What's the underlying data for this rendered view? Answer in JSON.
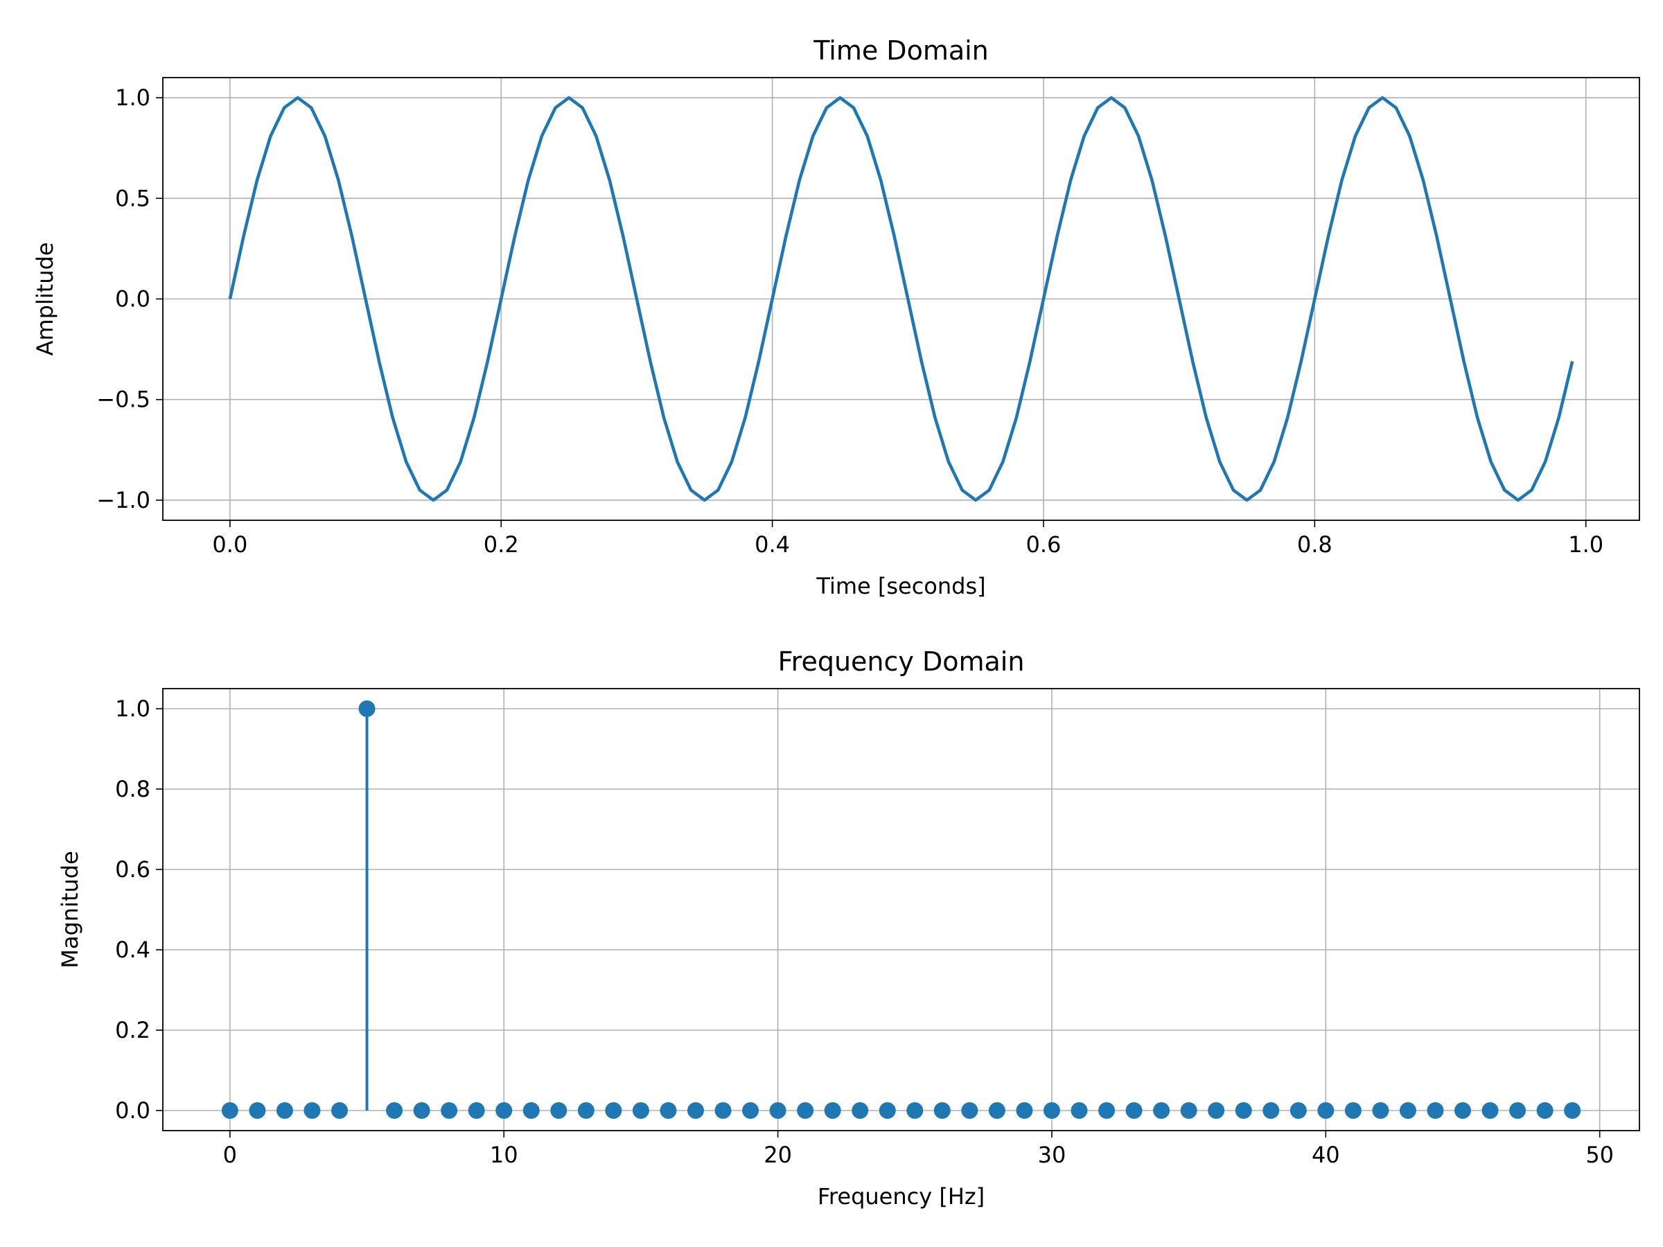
{
  "chart_data": [
    {
      "type": "line",
      "title": "Time Domain",
      "xlabel": "Time [seconds]",
      "ylabel": "Amplitude",
      "x": [
        0,
        0.01,
        0.02,
        0.03,
        0.04,
        0.05,
        0.06,
        0.07,
        0.08,
        0.09,
        0.1,
        0.11,
        0.12,
        0.13,
        0.14,
        0.15,
        0.16,
        0.17,
        0.18,
        0.19,
        0.2,
        0.21,
        0.22,
        0.23,
        0.24,
        0.25,
        0.26,
        0.27,
        0.28,
        0.29,
        0.3,
        0.31,
        0.32,
        0.33,
        0.34,
        0.35,
        0.36,
        0.37,
        0.38,
        0.39,
        0.4,
        0.41,
        0.42,
        0.43,
        0.44,
        0.45,
        0.46,
        0.47,
        0.48,
        0.49,
        0.5,
        0.51,
        0.52,
        0.53,
        0.54,
        0.55,
        0.56,
        0.57,
        0.58,
        0.59,
        0.6,
        0.61,
        0.62,
        0.63,
        0.64,
        0.65,
        0.66,
        0.67,
        0.68,
        0.69,
        0.7,
        0.71,
        0.72,
        0.73,
        0.74,
        0.75,
        0.76,
        0.77,
        0.78,
        0.79,
        0.8,
        0.81,
        0.82,
        0.83,
        0.84,
        0.85,
        0.86,
        0.87,
        0.88,
        0.89,
        0.9,
        0.91,
        0.92,
        0.93,
        0.94,
        0.95,
        0.96,
        0.97,
        0.98,
        0.99
      ],
      "series": [
        {
          "color": "#1f77b4",
          "values": [
            0,
            0.31,
            0.59,
            0.81,
            0.95,
            1,
            0.95,
            0.81,
            0.59,
            0.31,
            0,
            -0.31,
            -0.59,
            -0.81,
            -0.95,
            -1,
            -0.95,
            -0.81,
            -0.59,
            -0.31,
            0,
            0.31,
            0.59,
            0.81,
            0.95,
            1,
            0.95,
            0.81,
            0.59,
            0.31,
            0,
            -0.31,
            -0.59,
            -0.81,
            -0.95,
            -1,
            -0.95,
            -0.81,
            -0.59,
            -0.31,
            0,
            0.31,
            0.59,
            0.81,
            0.95,
            1,
            0.95,
            0.81,
            0.59,
            0.31,
            0,
            -0.31,
            -0.59,
            -0.81,
            -0.95,
            -1,
            -0.95,
            -0.81,
            -0.59,
            -0.31,
            0,
            0.31,
            0.59,
            0.81,
            0.95,
            1,
            0.95,
            0.81,
            0.59,
            0.31,
            0,
            -0.31,
            -0.59,
            -0.81,
            -0.95,
            -1,
            -0.95,
            -0.81,
            -0.59,
            -0.31,
            0,
            0.31,
            0.59,
            0.81,
            0.95,
            1,
            0.95,
            0.81,
            0.59,
            0.31,
            0,
            -0.31,
            -0.59,
            -0.81,
            -0.95,
            -1,
            -0.95,
            -0.81,
            -0.59,
            -0.31
          ]
        }
      ],
      "xlim": [
        -0.0495,
        1.0395
      ],
      "ylim": [
        -1.1,
        1.1
      ],
      "xticks": [
        {
          "value": 0,
          "label": "0.0"
        },
        {
          "value": 0.2,
          "label": "0.2"
        },
        {
          "value": 0.4,
          "label": "0.4"
        },
        {
          "value": 0.6,
          "label": "0.6"
        },
        {
          "value": 0.8,
          "label": "0.8"
        },
        {
          "value": 1,
          "label": "1.0"
        }
      ],
      "yticks": [
        {
          "value": -1,
          "label": "−1.0"
        },
        {
          "value": -0.5,
          "label": "−0.5"
        },
        {
          "value": 0,
          "label": "0.0"
        },
        {
          "value": 0.5,
          "label": "0.5"
        },
        {
          "value": 1,
          "label": "1.0"
        }
      ],
      "grid": true
    },
    {
      "type": "stem",
      "title": "Frequency Domain",
      "xlabel": "Frequency [Hz]",
      "ylabel": "Magnitude",
      "x": [
        0,
        1,
        2,
        3,
        4,
        5,
        6,
        7,
        8,
        9,
        10,
        11,
        12,
        13,
        14,
        15,
        16,
        17,
        18,
        19,
        20,
        21,
        22,
        23,
        24,
        25,
        26,
        27,
        28,
        29,
        30,
        31,
        32,
        33,
        34,
        35,
        36,
        37,
        38,
        39,
        40,
        41,
        42,
        43,
        44,
        45,
        46,
        47,
        48,
        49
      ],
      "series": [
        {
          "color": "#1f77b4",
          "values": [
            0,
            0,
            0,
            0,
            0,
            1,
            0,
            0,
            0,
            0,
            0,
            0,
            0,
            0,
            0,
            0,
            0,
            0,
            0,
            0,
            0,
            0,
            0,
            0,
            0,
            0,
            0,
            0,
            0,
            0,
            0,
            0,
            0,
            0,
            0,
            0,
            0,
            0,
            0,
            0,
            0,
            0,
            0,
            0,
            0,
            0,
            0,
            0,
            0,
            0
          ]
        }
      ],
      "xlim": [
        -2.45,
        51.45
      ],
      "ylim": [
        -0.05,
        1.05
      ],
      "xticks": [
        0,
        10,
        20,
        30,
        40,
        50
      ],
      "yticks": [
        {
          "value": 0,
          "label": "0.0"
        },
        {
          "value": 0.2,
          "label": "0.2"
        },
        {
          "value": 0.4,
          "label": "0.4"
        },
        {
          "value": 0.6,
          "label": "0.6"
        },
        {
          "value": 0.8,
          "label": "0.8"
        },
        {
          "value": 1,
          "label": "1.0"
        }
      ],
      "grid": true
    }
  ]
}
